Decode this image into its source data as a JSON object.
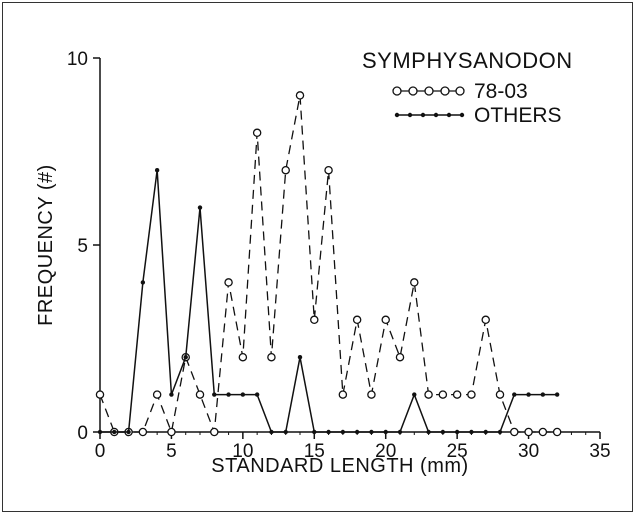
{
  "chart_data": {
    "type": "line",
    "title": "SYMPHYSANODON",
    "xlabel": "STANDARD LENGTH (mm)",
    "ylabel": "FREQUENCY (#)",
    "xlim": [
      0,
      35
    ],
    "ylim": [
      0,
      10
    ],
    "xticks": [
      0,
      5,
      10,
      15,
      20,
      25,
      30,
      35
    ],
    "yticks": [
      0,
      5,
      10
    ],
    "grid": false,
    "legend_position": "top-right",
    "series": [
      {
        "name": "78-03",
        "style": "dashed-open-circle",
        "x": [
          0,
          1,
          2,
          3,
          4,
          5,
          6,
          7,
          8,
          9,
          10,
          11,
          12,
          13,
          14,
          15,
          16,
          17,
          18,
          19,
          20,
          21,
          22,
          23,
          24,
          25,
          26,
          27,
          28,
          29,
          30,
          31,
          32
        ],
        "y": [
          1,
          0,
          0,
          0,
          1,
          0,
          2,
          1,
          0,
          4,
          2,
          8,
          2,
          7,
          9,
          3,
          7,
          1,
          3,
          1,
          3,
          2,
          4,
          1,
          1,
          1,
          1,
          3,
          1,
          0,
          0,
          0,
          0
        ]
      },
      {
        "name": "OTHERS",
        "style": "solid-dot",
        "x": [
          0,
          1,
          2,
          3,
          4,
          5,
          6,
          7,
          8,
          9,
          10,
          11,
          12,
          13,
          14,
          15,
          16,
          17,
          18,
          19,
          20,
          21,
          22,
          23,
          24,
          25,
          26,
          27,
          28,
          29,
          30,
          31,
          32
        ],
        "y": [
          0,
          0,
          0,
          4,
          7,
          1,
          2,
          6,
          1,
          1,
          1,
          1,
          0,
          0,
          2,
          0,
          0,
          0,
          0,
          0,
          0,
          0,
          1,
          0,
          0,
          0,
          0,
          0,
          0,
          1,
          1,
          1,
          1
        ]
      }
    ]
  },
  "legend": {
    "series_a": "78-03",
    "series_b": "OTHERS"
  }
}
